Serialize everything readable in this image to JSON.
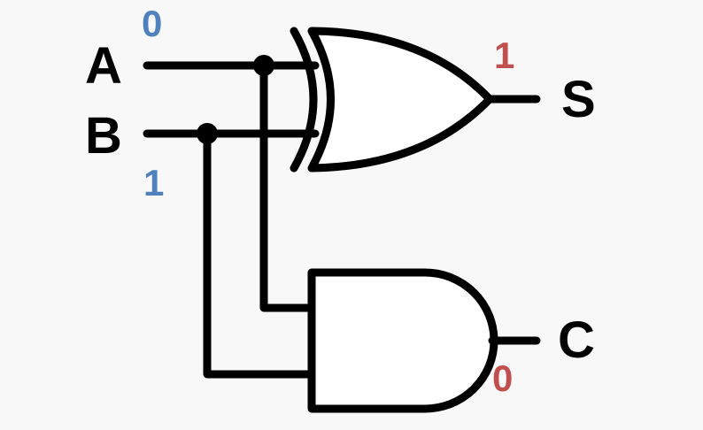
{
  "inputs": {
    "a": {
      "label": "A",
      "value": "0"
    },
    "b": {
      "label": "B",
      "value": "1"
    }
  },
  "outputs": {
    "s": {
      "label": "S",
      "value": "1"
    },
    "c": {
      "label": "C",
      "value": "0"
    }
  },
  "colors": {
    "input_value": "#4f81bd",
    "output_value": "#c0504d",
    "wire": "#000000",
    "background": "#f8f8f8"
  }
}
